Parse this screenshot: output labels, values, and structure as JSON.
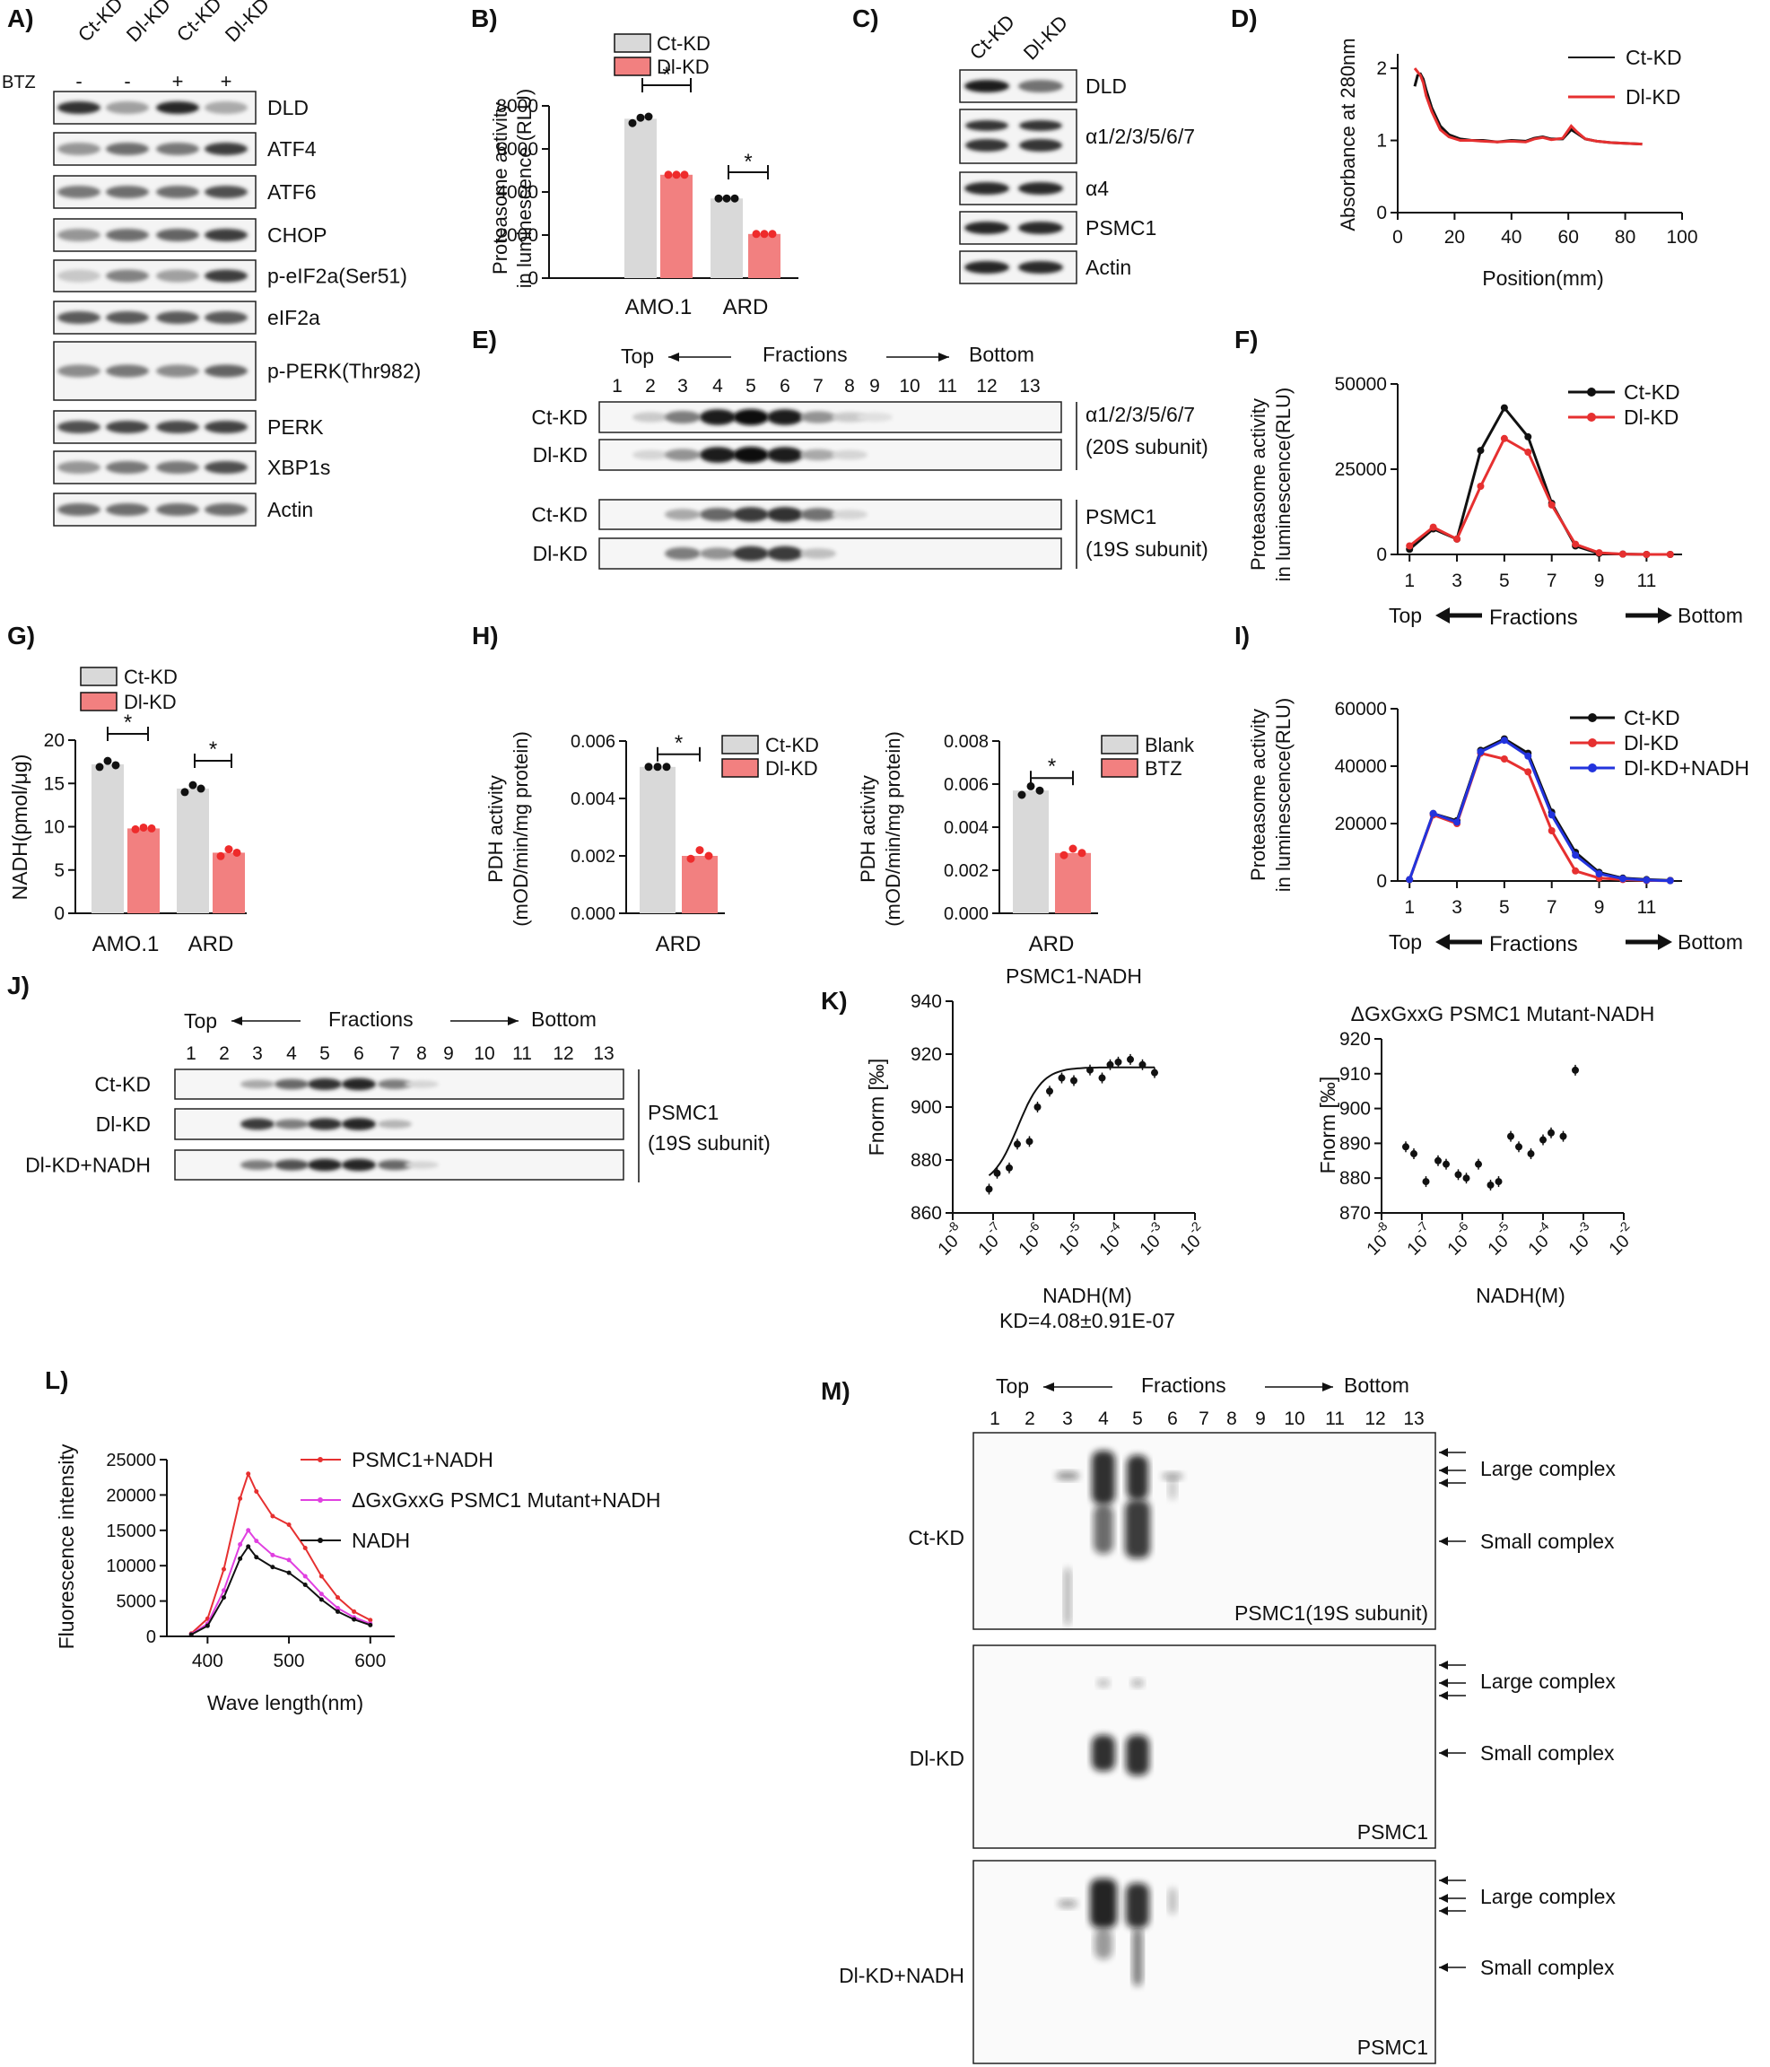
{
  "colors": {
    "grey": "#d9d9d9",
    "red": "#f28080",
    "dot_red": "#ee2b2b",
    "blue": "#2233dd",
    "black": "#111111",
    "pink": "#e040e0",
    "line_red": "#e63030"
  },
  "panels": {
    "A": {
      "letter": "A)",
      "btz_label": "BTZ",
      "lanes": [
        "Ct-KD",
        "Dl-KD",
        "Ct-KD",
        "Dl-KD"
      ],
      "btz": [
        "-",
        "-",
        "+",
        "+"
      ],
      "bands": [
        "DLD",
        "ATF4",
        "ATF6",
        "CHOP",
        "p-eIF2a(Ser51)",
        "eIF2a",
        "p-PERK(Thr982)",
        "PERK",
        "XBP1s",
        "Actin"
      ]
    },
    "B": {
      "letter": "B)",
      "ylabel1": "Proteasome activity",
      "ylabel2": "in luminescence (RLU)",
      "yticks": [
        "0",
        "2000",
        "4000",
        "6000",
        "8000"
      ],
      "groups": [
        "AMO.1",
        "ARD"
      ],
      "legend": [
        "Ct-KD",
        "Dl-KD"
      ],
      "sig": [
        "*",
        "*"
      ]
    },
    "C": {
      "letter": "C)",
      "lanes": [
        "Ct-KD",
        "Dl-KD"
      ],
      "bands": [
        "DLD",
        "α1/2/3/5/6/7",
        "α4",
        "PSMC1",
        "Actin"
      ]
    },
    "D": {
      "letter": "D)",
      "ylabel": "Absorbance at 280nm",
      "xlabel": "Position(mm)",
      "xticks": [
        "0",
        "20",
        "40",
        "60",
        "80",
        "100"
      ],
      "yticks": [
        "0",
        "1",
        "2"
      ],
      "legend": [
        "Ct-KD",
        "Dl-KD"
      ]
    },
    "E": {
      "letter": "E)",
      "top": "Top",
      "fractions": "Fractions",
      "bottom": "Bottom",
      "nums": [
        "1",
        "2",
        "3",
        "4",
        "5",
        "6",
        "7",
        "8",
        "9",
        "10",
        "11",
        "12",
        "13"
      ],
      "rows": [
        "Ct-KD",
        "Dl-KD",
        "Ct-KD",
        "Dl-KD"
      ],
      "label1a": "α1/2/3/5/6/7",
      "label1b": "(20S subunit)",
      "label2a": "PSMC1",
      "label2b": "(19S subunit)"
    },
    "F": {
      "letter": "F)",
      "ylabel1": "Proteasome activity",
      "ylabel2": "in luminescence(RLU)",
      "yticks": [
        "0",
        "25000",
        "50000"
      ],
      "xticks": [
        "1",
        "3",
        "5",
        "7",
        "9",
        "11"
      ],
      "top": "Top",
      "fractions": "Fractions",
      "bottom": "Bottom",
      "legend": [
        "Ct-KD",
        "Dl-KD"
      ]
    },
    "G": {
      "letter": "G)",
      "ylabel": "NADH(pmol/μg)",
      "yticks": [
        "0",
        "5",
        "10",
        "15",
        "20"
      ],
      "groups": [
        "AMO.1",
        "ARD"
      ],
      "legend": [
        "Ct-KD",
        "Dl-KD"
      ],
      "sig": [
        "*",
        "*"
      ]
    },
    "H": {
      "letter": "H)",
      "ylabel1": "PDH activity",
      "ylabel2": "(mOD/min/mg protein)",
      "left_yticks": [
        "0.000",
        "0.002",
        "0.004",
        "0.006"
      ],
      "right_yticks": [
        "0.000",
        "0.002",
        "0.004",
        "0.006",
        "0.008"
      ],
      "group": "ARD",
      "legend_left": [
        "Ct-KD",
        "Dl-KD"
      ],
      "legend_right": [
        "Blank",
        "BTZ"
      ],
      "sig": "*"
    },
    "I": {
      "letter": "I)",
      "ylabel1": "Proteasome activity",
      "ylabel2": "in luminescence(RLU)",
      "yticks": [
        "0",
        "20000",
        "40000",
        "60000"
      ],
      "xticks": [
        "1",
        "3",
        "5",
        "7",
        "9",
        "11"
      ],
      "top": "Top",
      "fractions": "Fractions",
      "bottom": "Bottom",
      "legend": [
        "Ct-KD",
        "Dl-KD",
        "Dl-KD+NADH"
      ]
    },
    "J": {
      "letter": "J)",
      "top": "Top",
      "fractions": "Fractions",
      "bottom": "Bottom",
      "nums": [
        "1",
        "2",
        "3",
        "4",
        "5",
        "6",
        "7",
        "8",
        "9",
        "10",
        "11",
        "12",
        "13"
      ],
      "rows": [
        "Ct-KD",
        "Dl-KD",
        "Dl-KD+NADH"
      ],
      "label_a": "PSMC1",
      "label_b": "(19S subunit)"
    },
    "K": {
      "letter": "K)",
      "left_title": "PSMC1-NADH",
      "right_title": "ΔGxGxxG PSMC1 Mutant-NADH",
      "ylabel": "Fnorm [‰]",
      "xlabel": "NADH(M)",
      "kd": "KD=4.08±0.91E-07",
      "left_yticks": [
        "860",
        "880",
        "900",
        "920",
        "940"
      ],
      "right_yticks": [
        "870",
        "880",
        "890",
        "900",
        "910",
        "920"
      ],
      "xexp": [
        "-8",
        "-7",
        "-6",
        "-5",
        "-4",
        "-3",
        "-2"
      ],
      "xbase": "10"
    },
    "L": {
      "letter": "L)",
      "ylabel": "Fluorescence intensity",
      "xlabel": "Wave length(nm)",
      "yticks": [
        "0",
        "5000",
        "10000",
        "15000",
        "20000",
        "25000"
      ],
      "xticks": [
        "400",
        "500",
        "600"
      ],
      "legend": [
        "PSMC1+NADH",
        "ΔGxGxxG PSMC1 Mutant+NADH",
        "NADH"
      ]
    },
    "M": {
      "letter": "M)",
      "top": "Top",
      "fractions": "Fractions",
      "bottom": "Bottom",
      "nums": [
        "1",
        "2",
        "3",
        "4",
        "5",
        "6",
        "7",
        "8",
        "9",
        "10",
        "11",
        "12",
        "13"
      ],
      "rows": [
        "Ct-KD",
        "Dl-KD",
        "Dl-KD+NADH"
      ],
      "blot_labels": [
        "PSMC1(19S subunit)",
        "PSMC1",
        "PSMC1"
      ],
      "large": "Large complex",
      "small": "Small complex"
    }
  },
  "chart_data": [
    {
      "type": "bar",
      "id": "B",
      "title": "",
      "ylabel": "Proteasome activity in luminescence (RLU)",
      "ylim": [
        0,
        8000
      ],
      "categories": [
        "AMO.1",
        "ARD"
      ],
      "series": [
        {
          "name": "Ct-KD",
          "values": [
            7400,
            3700
          ],
          "points": [
            [
              7200,
              7450,
              7500
            ],
            [
              3700,
              3700,
              3700
            ]
          ]
        },
        {
          "name": "Dl-KD",
          "values": [
            4800,
            2050
          ],
          "points": [
            [
              4800,
              4800,
              4800
            ],
            [
              2050,
              2050,
              2050
            ]
          ]
        }
      ]
    },
    {
      "type": "line",
      "id": "D",
      "xlabel": "Position(mm)",
      "ylabel": "Absorbance at 280nm",
      "xlim": [
        0,
        100
      ],
      "ylim": [
        0,
        2.2
      ],
      "series": [
        {
          "name": "Ct-KD",
          "x": [
            6,
            7,
            8,
            9,
            10,
            12,
            15,
            18,
            22,
            26,
            30,
            35,
            40,
            45,
            48,
            51,
            54,
            58,
            61,
            63,
            66,
            70,
            75,
            80,
            86
          ],
          "y": [
            1.75,
            1.9,
            1.92,
            1.85,
            1.7,
            1.45,
            1.2,
            1.08,
            1.02,
            1.0,
            1.0,
            0.98,
            1.0,
            0.99,
            1.03,
            1.05,
            1.02,
            1.02,
            1.15,
            1.1,
            1.02,
            0.99,
            0.97,
            0.96,
            0.95
          ]
        },
        {
          "name": "Dl-KD",
          "x": [
            6,
            7,
            8,
            9,
            10,
            12,
            15,
            18,
            22,
            26,
            30,
            35,
            40,
            45,
            48,
            51,
            54,
            58,
            61,
            63,
            66,
            70,
            75,
            80,
            86
          ],
          "y": [
            2.0,
            1.95,
            1.9,
            1.8,
            1.62,
            1.4,
            1.15,
            1.05,
            1.0,
            1.0,
            0.99,
            0.98,
            0.99,
            0.98,
            1.02,
            1.04,
            1.01,
            1.03,
            1.2,
            1.12,
            1.02,
            0.99,
            0.97,
            0.96,
            0.95
          ]
        }
      ]
    },
    {
      "type": "line",
      "id": "F",
      "xlabel": "Fractions",
      "ylabel": "Proteasome activity in luminescence(RLU)",
      "xlim": [
        0.5,
        12.5
      ],
      "ylim": [
        0,
        50000
      ],
      "x": [
        1,
        2,
        3,
        4,
        5,
        6,
        7,
        8,
        9,
        10,
        11,
        12
      ],
      "series": [
        {
          "name": "Ct-KD",
          "values": [
            1500,
            7500,
            4500,
            30500,
            43000,
            34500,
            15000,
            2500,
            300,
            100,
            0,
            0
          ]
        },
        {
          "name": "Dl-KD",
          "values": [
            2500,
            8000,
            4500,
            20000,
            34000,
            30000,
            14500,
            3000,
            500,
            100,
            0,
            0
          ]
        }
      ]
    },
    {
      "type": "bar",
      "id": "G",
      "ylabel": "NADH(pmol/μg)",
      "ylim": [
        0,
        20
      ],
      "categories": [
        "AMO.1",
        "ARD"
      ],
      "series": [
        {
          "name": "Ct-KD",
          "values": [
            17.2,
            14.4
          ],
          "points": [
            [
              16.9,
              17.6,
              17.1
            ],
            [
              14.0,
              14.8,
              14.4
            ]
          ]
        },
        {
          "name": "Dl-KD",
          "values": [
            9.8,
            7.0
          ],
          "points": [
            [
              9.7,
              9.9,
              9.8
            ],
            [
              6.6,
              7.4,
              7.0
            ]
          ]
        }
      ]
    },
    {
      "type": "bar",
      "id": "H-left",
      "ylabel": "PDH activity (mOD/min/mg protein)",
      "ylim": [
        0,
        0.006
      ],
      "categories": [
        "ARD"
      ],
      "series": [
        {
          "name": "Ct-KD",
          "values": [
            0.0051
          ],
          "points": [
            [
              0.0051,
              0.0051,
              0.0051
            ]
          ]
        },
        {
          "name": "Dl-KD",
          "values": [
            0.002
          ],
          "points": [
            [
              0.0019,
              0.0022,
              0.002
            ]
          ]
        }
      ]
    },
    {
      "type": "bar",
      "id": "H-right",
      "ylabel": "PDH activity (mOD/min/mg protein)",
      "ylim": [
        0,
        0.008
      ],
      "categories": [
        "ARD"
      ],
      "series": [
        {
          "name": "Blank",
          "values": [
            0.0057
          ],
          "points": [
            [
              0.0055,
              0.0059,
              0.0057
            ]
          ]
        },
        {
          "name": "BTZ",
          "values": [
            0.0028
          ],
          "points": [
            [
              0.0027,
              0.003,
              0.0028
            ]
          ]
        }
      ]
    },
    {
      "type": "line",
      "id": "I",
      "xlabel": "Fractions",
      "ylabel": "Proteasome activity in luminescence(RLU)",
      "xlim": [
        0.5,
        12.5
      ],
      "ylim": [
        0,
        60000
      ],
      "x": [
        1,
        2,
        3,
        4,
        5,
        6,
        7,
        8,
        9,
        10,
        11,
        12
      ],
      "series": [
        {
          "name": "Ct-KD",
          "values": [
            500,
            23500,
            21000,
            45500,
            49500,
            44500,
            24000,
            10000,
            3000,
            1000,
            500,
            200
          ]
        },
        {
          "name": "Dl-KD",
          "values": [
            500,
            23000,
            20000,
            44500,
            42500,
            38000,
            17500,
            3500,
            1000,
            500,
            200,
            100
          ]
        },
        {
          "name": "Dl-KD+NADH",
          "values": [
            500,
            23500,
            20500,
            45000,
            49000,
            43500,
            23000,
            9000,
            2500,
            800,
            300,
            100
          ]
        }
      ]
    },
    {
      "type": "scatter",
      "id": "K-left",
      "title": "PSMC1-NADH",
      "xlabel": "NADH(M)",
      "ylabel": "Fnorm [‰]",
      "xlim_log10": [
        -8,
        -2
      ],
      "ylim": [
        860,
        940
      ],
      "x_log10": [
        -7.1,
        -6.9,
        -6.6,
        -6.4,
        -6.1,
        -5.9,
        -5.6,
        -5.3,
        -5.0,
        -4.6,
        -4.3,
        -4.1,
        -3.9,
        -3.6,
        -3.3,
        -3.0
      ],
      "y": [
        869,
        875,
        877,
        886,
        887,
        900,
        906,
        911,
        910,
        914,
        911,
        916,
        917,
        918,
        916,
        913
      ]
    },
    {
      "type": "scatter",
      "id": "K-right",
      "title": "ΔGxGxxG PSMC1 Mutant-NADH",
      "xlabel": "NADH(M)",
      "ylabel": "Fnorm [‰]",
      "xlim_log10": [
        -8,
        -2
      ],
      "ylim": [
        870,
        920
      ],
      "x_log10": [
        -7.4,
        -7.2,
        -6.9,
        -6.6,
        -6.4,
        -6.1,
        -5.9,
        -5.6,
        -5.3,
        -5.1,
        -4.8,
        -4.6,
        -4.3,
        -4.0,
        -3.8,
        -3.5,
        -3.2
      ],
      "y": [
        889,
        887,
        879,
        885,
        884,
        881,
        880,
        884,
        878,
        879,
        892,
        889,
        887,
        891,
        893,
        892,
        911
      ]
    },
    {
      "type": "line",
      "id": "L",
      "xlabel": "Wave length(nm)",
      "ylabel": "Fluorescence intensity",
      "xlim": [
        350,
        630
      ],
      "ylim": [
        0,
        25000
      ],
      "x": [
        380,
        400,
        420,
        440,
        450,
        460,
        480,
        500,
        520,
        540,
        560,
        580,
        600
      ],
      "series": [
        {
          "name": "PSMC1+NADH",
          "values": [
            400,
            2500,
            9500,
            19500,
            23000,
            20500,
            17000,
            15800,
            12500,
            8500,
            5500,
            3500,
            2300
          ]
        },
        {
          "name": "ΔGxGxxG PSMC1 Mutant+NADH",
          "values": [
            300,
            1800,
            6500,
            13000,
            15000,
            13500,
            11500,
            10800,
            8500,
            6000,
            4000,
            2700,
            1800
          ]
        },
        {
          "name": "NADH",
          "values": [
            250,
            1500,
            5500,
            11000,
            12700,
            11200,
            9800,
            9000,
            7300,
            5200,
            3500,
            2400,
            1600
          ]
        }
      ]
    }
  ]
}
